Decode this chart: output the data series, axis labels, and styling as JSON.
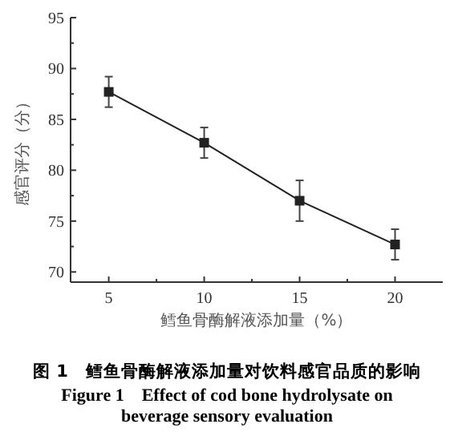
{
  "chart_data": {
    "type": "line",
    "title": "图 1　鳕鱼骨酶解液添加量对饮料感官品质的影响",
    "subtitle": "Figure 1　Effect of cod bone hydrolysate on beverage sensory evaluation",
    "xlabel": "鳕鱼骨酶解液添加量（%）",
    "ylabel": "感官评分（分）",
    "x": [
      5,
      10,
      15,
      20
    ],
    "series": [
      {
        "color": "#222222",
        "values": [
          87.7,
          82.7,
          77.0,
          72.7
        ],
        "errors": [
          1.5,
          1.5,
          2.0,
          1.5
        ]
      }
    ],
    "xlim": [
      3,
      22.5
    ],
    "xticks": [
      5,
      {
        "value": 7.5,
        "label": null
      },
      10,
      {
        "value": 12.5,
        "label": null
      },
      15,
      {
        "value": 17.5,
        "label": null
      },
      20
    ],
    "ylim": [
      69,
      95
    ],
    "yticks": [
      70,
      {
        "value": 72.5,
        "label": null
      },
      75,
      {
        "value": 77.5,
        "label": null
      },
      80,
      {
        "value": 82.5,
        "label": null
      },
      85,
      {
        "value": 87.5,
        "label": null
      },
      90,
      {
        "value": 92.5,
        "label": null
      },
      95
    ],
    "marker": "square",
    "line_style": "solid",
    "grid": false
  }
}
